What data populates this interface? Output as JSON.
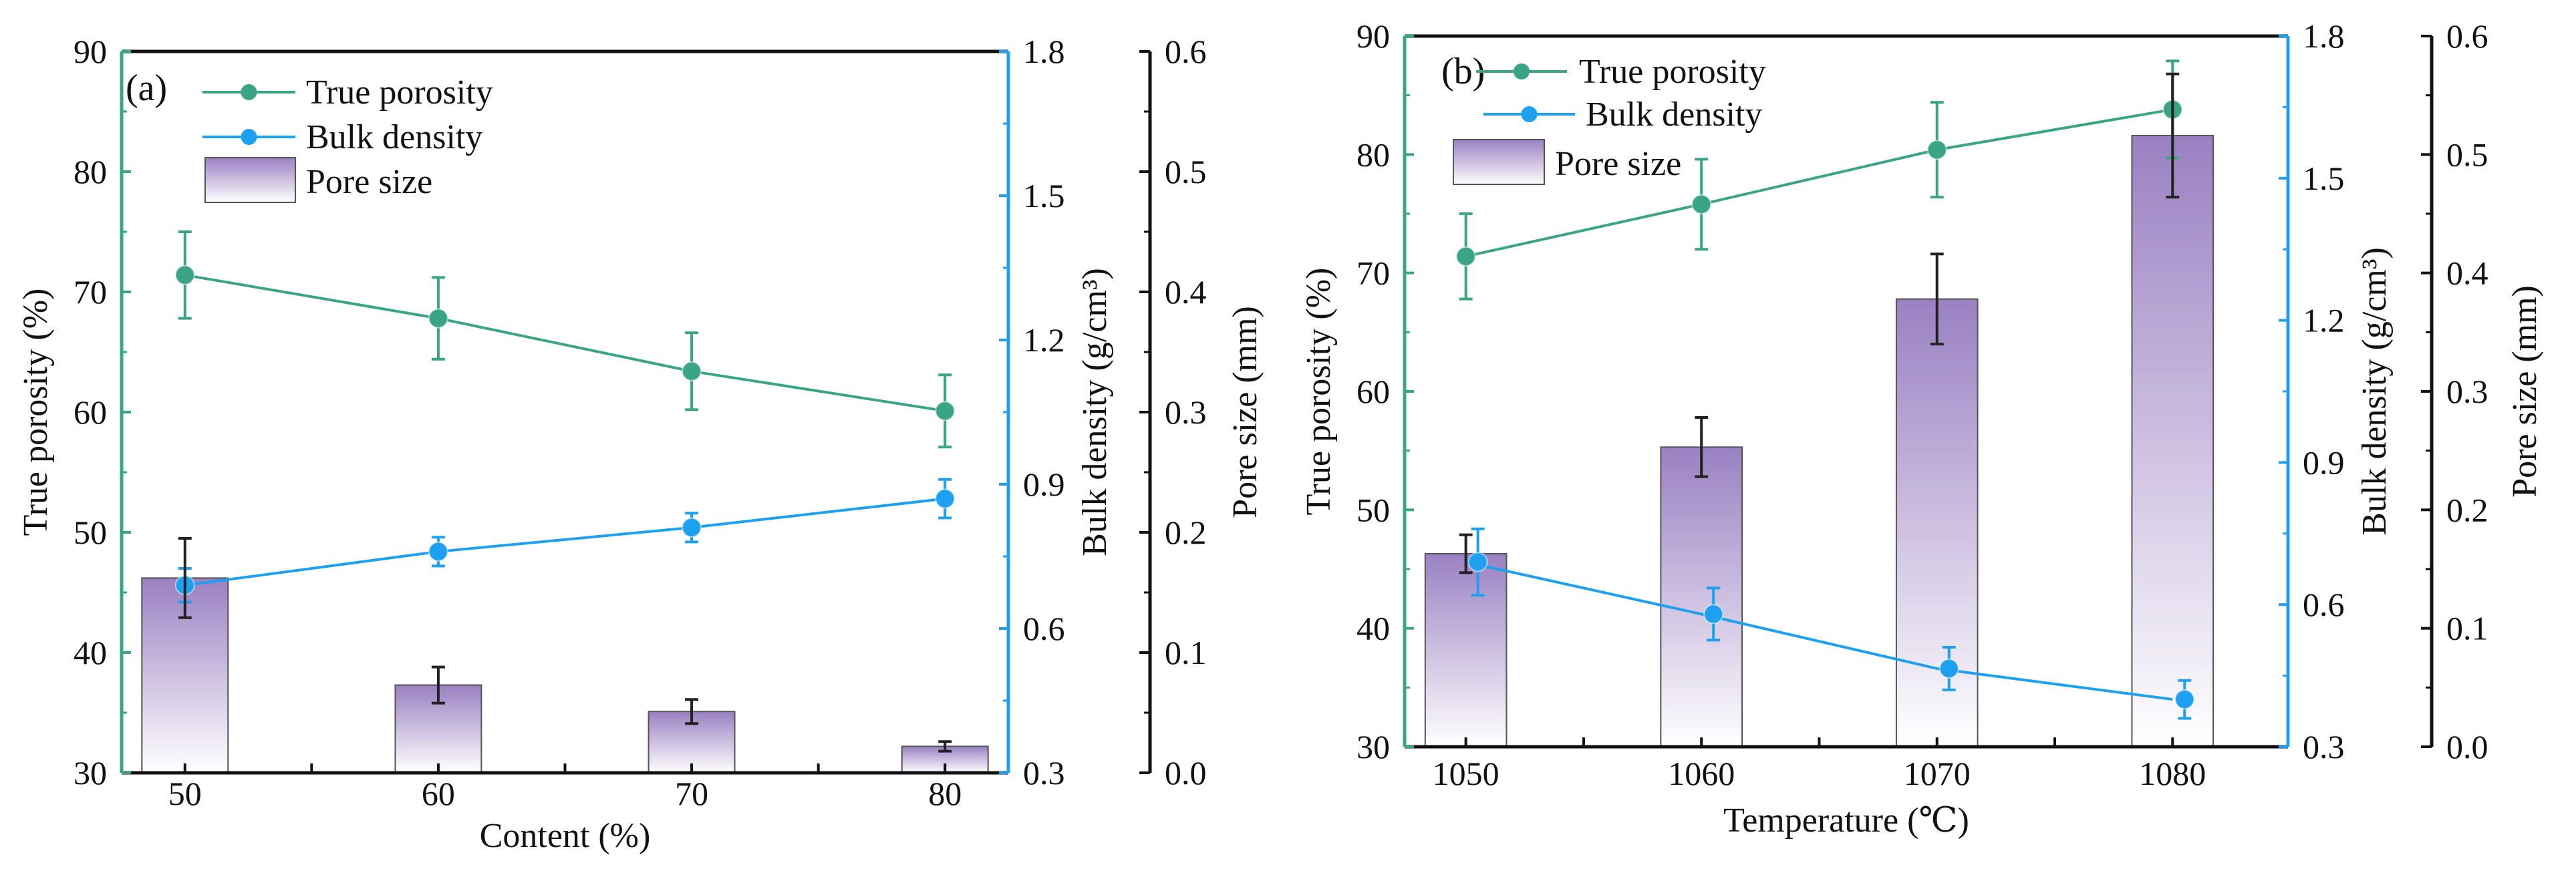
{
  "colors": {
    "true_porosity": "#3aa585",
    "bulk_density": "#1ea0f0",
    "bar_top": "#9a80c2",
    "bar_bottom": "#ffffff",
    "axis": "#111111"
  },
  "chart_data": [
    {
      "type": "bar+line",
      "panel_label": "(a)",
      "xlabel": "Content (%)",
      "ylabel": "True porosity (%)",
      "y2label": "Bulk density (g/cm³)",
      "y3label": "Pore size (mm)",
      "categories": [
        50,
        60,
        70,
        80
      ],
      "xlim": [
        47.5,
        82.5
      ],
      "ylim": [
        30,
        90
      ],
      "y2lim": [
        0.3,
        1.8
      ],
      "y3lim": [
        0.0,
        0.6
      ],
      "yticks": [
        "30",
        "40",
        "50",
        "60",
        "70",
        "80",
        "90"
      ],
      "y2ticks": [
        "0.3",
        "0.6",
        "0.9",
        "1.2",
        "1.5",
        "1.8"
      ],
      "y3ticks": [
        "0.0",
        "0.1",
        "0.2",
        "0.3",
        "0.4",
        "0.5",
        "0.6"
      ],
      "legend": [
        "True porosity",
        "Bulk density",
        "Pore size"
      ],
      "legend_placement": "top-left",
      "series": [
        {
          "name": "True porosity",
          "axis": "left",
          "kind": "line",
          "values": [
            71.4,
            67.8,
            63.4,
            60.1
          ],
          "errors": [
            3.6,
            3.4,
            3.2,
            3.0
          ]
        },
        {
          "name": "Bulk density",
          "axis": "right",
          "kind": "line",
          "values": [
            0.69,
            0.76,
            0.81,
            0.87
          ],
          "errors": [
            0.035,
            0.03,
            0.03,
            0.04
          ]
        },
        {
          "name": "Pore size",
          "axis": "right2",
          "kind": "bar",
          "values": [
            0.162,
            0.073,
            0.051,
            0.022
          ],
          "errors": [
            0.033,
            0.015,
            0.01,
            0.004
          ]
        }
      ]
    },
    {
      "type": "bar+line",
      "panel_label": "(b)",
      "xlabel": "Temperature (℃)",
      "ylabel": "True porosity (%)",
      "y2label": "Bulk density (g/cm³)",
      "y3label": "Pore size (mm)",
      "categories": [
        1050,
        1060,
        1070,
        1080
      ],
      "xlim": [
        1047.4,
        1084.9
      ],
      "ylim": [
        30,
        90
      ],
      "y2lim": [
        0.3,
        1.8
      ],
      "y3lim": [
        0.0,
        0.6
      ],
      "yticks": [
        "30",
        "40",
        "50",
        "60",
        "70",
        "80",
        "90"
      ],
      "y2ticks": [
        "0.3",
        "0.6",
        "0.9",
        "1.2",
        "1.5",
        "1.8"
      ],
      "y3ticks": [
        "0.0",
        "0.1",
        "0.2",
        "0.3",
        "0.4",
        "0.5",
        "0.6"
      ],
      "legend": [
        "True porosity",
        "Bulk density",
        "Pore size"
      ],
      "legend_placement": "top-left",
      "series": [
        {
          "name": "True porosity",
          "axis": "left",
          "kind": "line",
          "values": [
            71.4,
            75.8,
            80.4,
            83.8
          ],
          "errors": [
            3.6,
            3.8,
            4.0,
            4.1
          ]
        },
        {
          "name": "Bulk density",
          "axis": "right",
          "kind": "line",
          "values": [
            0.69,
            0.58,
            0.465,
            0.4
          ],
          "errors": [
            0.07,
            0.055,
            0.045,
            0.04
          ]
        },
        {
          "name": "Pore size",
          "axis": "right2",
          "kind": "bar",
          "values": [
            0.163,
            0.253,
            0.378,
            0.516
          ],
          "errors": [
            0.016,
            0.025,
            0.038,
            0.052
          ]
        }
      ]
    }
  ]
}
